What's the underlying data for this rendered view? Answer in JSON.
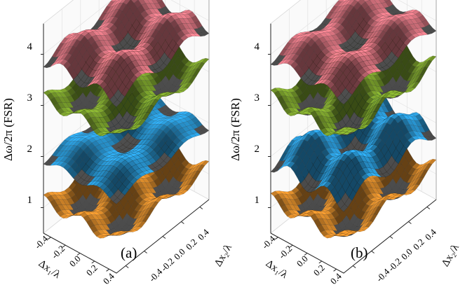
{
  "figure": {
    "panels": [
      {
        "panel_label": "(a)",
        "zlabel": "Δω/2π (FSR)",
        "xlabel": "Δx₁/λ",
        "ylabel": "Δx₂/λ",
        "z_ticks": [
          "1",
          "2",
          "3",
          "4"
        ],
        "x_ticks": [
          "-0.4",
          "-0.2",
          "0.0",
          "0.2",
          "0.4"
        ],
        "y_ticks": [
          "-0.4",
          "-0.2",
          "0.0",
          "0.2",
          "0.4"
        ]
      },
      {
        "panel_label": "(b)",
        "zlabel": "Δω/2π (FSR)",
        "xlabel": "Δx₁/λ",
        "ylabel": "Δx₂/λ",
        "z_ticks": [
          "1",
          "2",
          "3",
          "4"
        ],
        "x_ticks": [
          "-0.4",
          "-0.2",
          "0.0",
          "0.2",
          "0.4"
        ],
        "y_ticks": [
          "-0.4",
          "-0.2",
          "0.0",
          "0.2",
          "0.4"
        ]
      }
    ]
  },
  "chart_data": [
    {
      "type": "surface",
      "panel": "(a)",
      "xlabel": "Δx₁/λ",
      "ylabel": "Δx₂/λ",
      "zlabel": "Δω/2π (FSR)",
      "xlim": [
        -0.5,
        0.5
      ],
      "ylim": [
        -0.5,
        0.5
      ],
      "zlim": [
        0.5,
        4.5
      ],
      "grid": true,
      "series": [
        {
          "color": "#d98a2a",
          "mean": 1.0,
          "amplitude": 0.25
        },
        {
          "color": "#2a9ad8",
          "mean": 2.0,
          "amplitude": 0.15
        },
        {
          "color": "#7aa02c",
          "mean": 3.0,
          "amplitude": 0.25
        },
        {
          "color": "#d97480",
          "mean": 4.0,
          "amplitude": 0.25
        }
      ]
    },
    {
      "type": "surface",
      "panel": "(b)",
      "xlabel": "Δx₁/λ",
      "ylabel": "Δx₂/λ",
      "zlabel": "Δω/2π (FSR)",
      "xlim": [
        -0.5,
        0.5
      ],
      "ylim": [
        -0.5,
        0.5
      ],
      "zlim": [
        0.5,
        4.5
      ],
      "grid": true,
      "series": [
        {
          "color": "#d98a2a",
          "mean": 1.0,
          "amplitude": 0.28
        },
        {
          "color": "#2a9ad8",
          "mean": 2.0,
          "amplitude": 0.3
        },
        {
          "color": "#7aa02c",
          "mean": 3.0,
          "amplitude": 0.3
        },
        {
          "color": "#d97480",
          "mean": 4.0,
          "amplitude": 0.2
        }
      ]
    }
  ]
}
